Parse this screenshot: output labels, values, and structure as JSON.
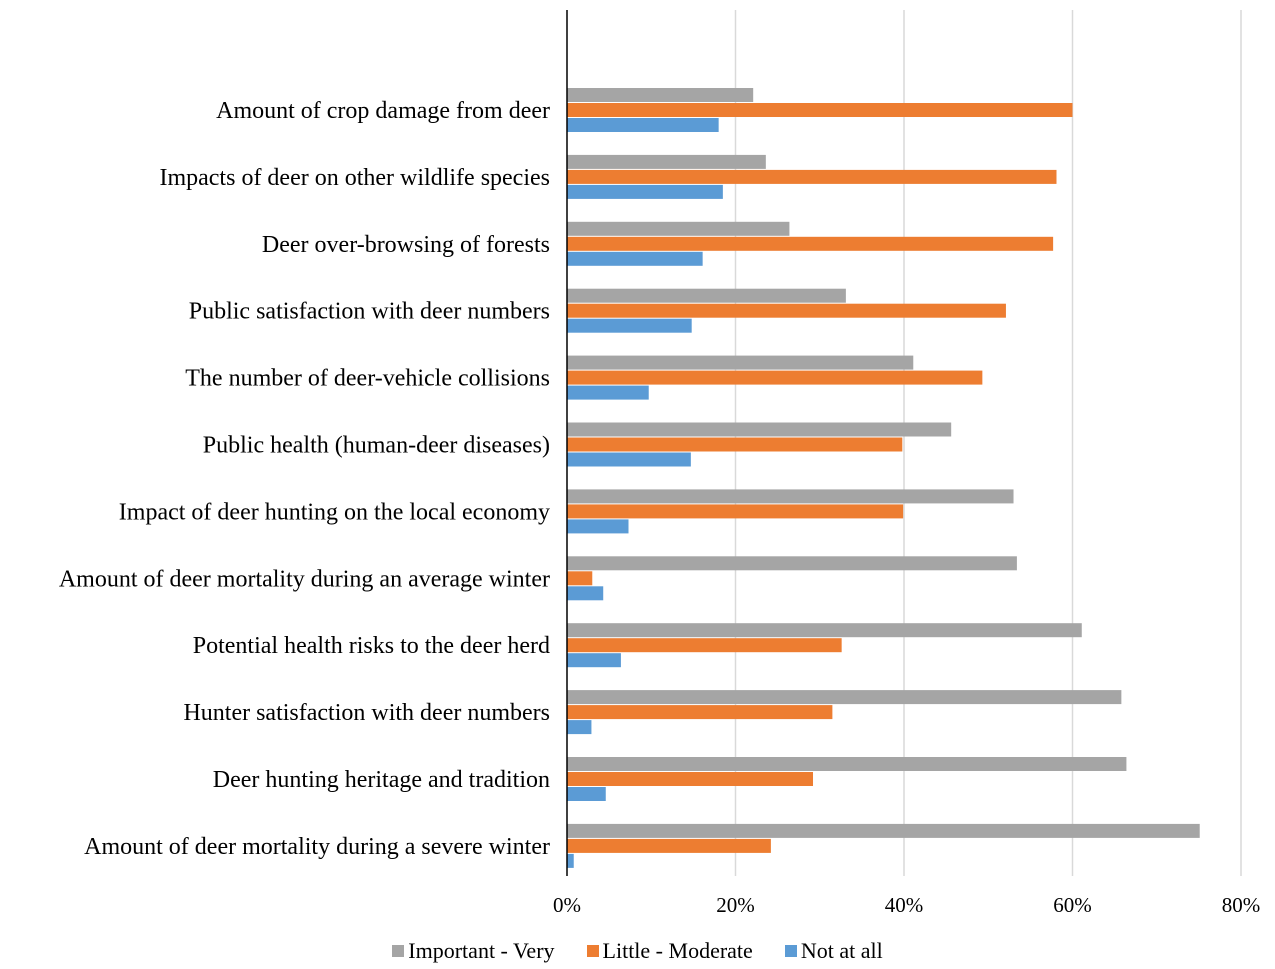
{
  "chart_data": {
    "type": "bar",
    "orientation": "horizontal",
    "categories": [
      "Amount of crop damage from deer",
      "Impacts of deer on other wildlife species",
      "Deer over-browsing of forests",
      "Public satisfaction with deer numbers",
      "The number of deer-vehicle collisions",
      "Public health (human-deer diseases)",
      "Impact of deer hunting on the local economy",
      "Amount of deer mortality during an average winter",
      "Potential health risks to the deer herd",
      "Hunter satisfaction with deer numbers",
      "Deer hunting heritage and tradition",
      "Amount of deer mortality during a severe winter"
    ],
    "series": [
      {
        "name": "Important - Very",
        "color": "#a5a5a5",
        "values": [
          22.1,
          23.6,
          26.4,
          33.1,
          41.1,
          45.6,
          53.0,
          53.4,
          61.1,
          65.8,
          66.4,
          75.1
        ]
      },
      {
        "name": "Little - Moderate",
        "color": "#ed7d31",
        "values": [
          60.0,
          58.1,
          57.7,
          52.1,
          49.3,
          39.8,
          39.9,
          3.0,
          32.6,
          31.5,
          29.2,
          24.2
        ]
      },
      {
        "name": "Not at all",
        "color": "#5b9bd5",
        "values": [
          18.0,
          18.5,
          16.1,
          14.8,
          9.7,
          14.7,
          7.3,
          4.3,
          6.4,
          2.9,
          4.6,
          0.8
        ]
      }
    ],
    "xlim": [
      0,
      80
    ],
    "xticks": [
      "0%",
      "20%",
      "40%",
      "60%",
      "80%"
    ],
    "xtick_values": [
      0,
      20,
      40,
      60,
      80
    ],
    "grid": true,
    "legend_position": "bottom"
  }
}
